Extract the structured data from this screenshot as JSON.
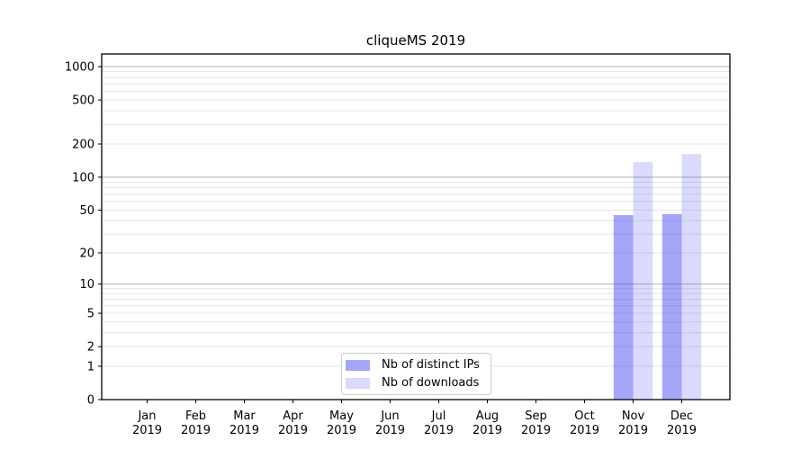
{
  "chart_data": {
    "type": "bar",
    "title": "cliqueMS 2019",
    "categories": [
      "Jan",
      "Feb",
      "Mar",
      "Apr",
      "May",
      "Jun",
      "Jul",
      "Aug",
      "Sep",
      "Oct",
      "Nov",
      "Dec"
    ],
    "year": "2019",
    "series": [
      {
        "name": "Nb of distinct IPs",
        "color": "rgba(85,85,242,0.52)",
        "values": [
          0,
          0,
          0,
          0,
          0,
          0,
          0,
          0,
          0,
          0,
          45,
          46
        ]
      },
      {
        "name": "Nb of downloads",
        "color": "rgba(85,85,242,0.22)",
        "values": [
          0,
          0,
          0,
          0,
          0,
          0,
          0,
          0,
          0,
          0,
          137,
          162
        ]
      }
    ],
    "yscale": "log1p",
    "ylim": [
      0,
      1300
    ],
    "y_ticks": [
      0,
      1,
      2,
      5,
      10,
      20,
      50,
      100,
      200,
      500,
      1000
    ],
    "y_grid_major": [
      10,
      100,
      1000
    ],
    "y_grid_minor": [
      1,
      2,
      3,
      4,
      5,
      6,
      7,
      8,
      9,
      20,
      30,
      40,
      50,
      60,
      70,
      80,
      90,
      200,
      300,
      400,
      500,
      600,
      700,
      800,
      900
    ],
    "grid": true,
    "legend_position": "lower center",
    "colors": {
      "grid_major": "#b2b2b2",
      "grid_minor": "#e4e4e4",
      "spine": "#000000",
      "tick": "#000000",
      "text": "#000000",
      "legend_border": "#cccccc",
      "background": "#ffffff"
    }
  }
}
